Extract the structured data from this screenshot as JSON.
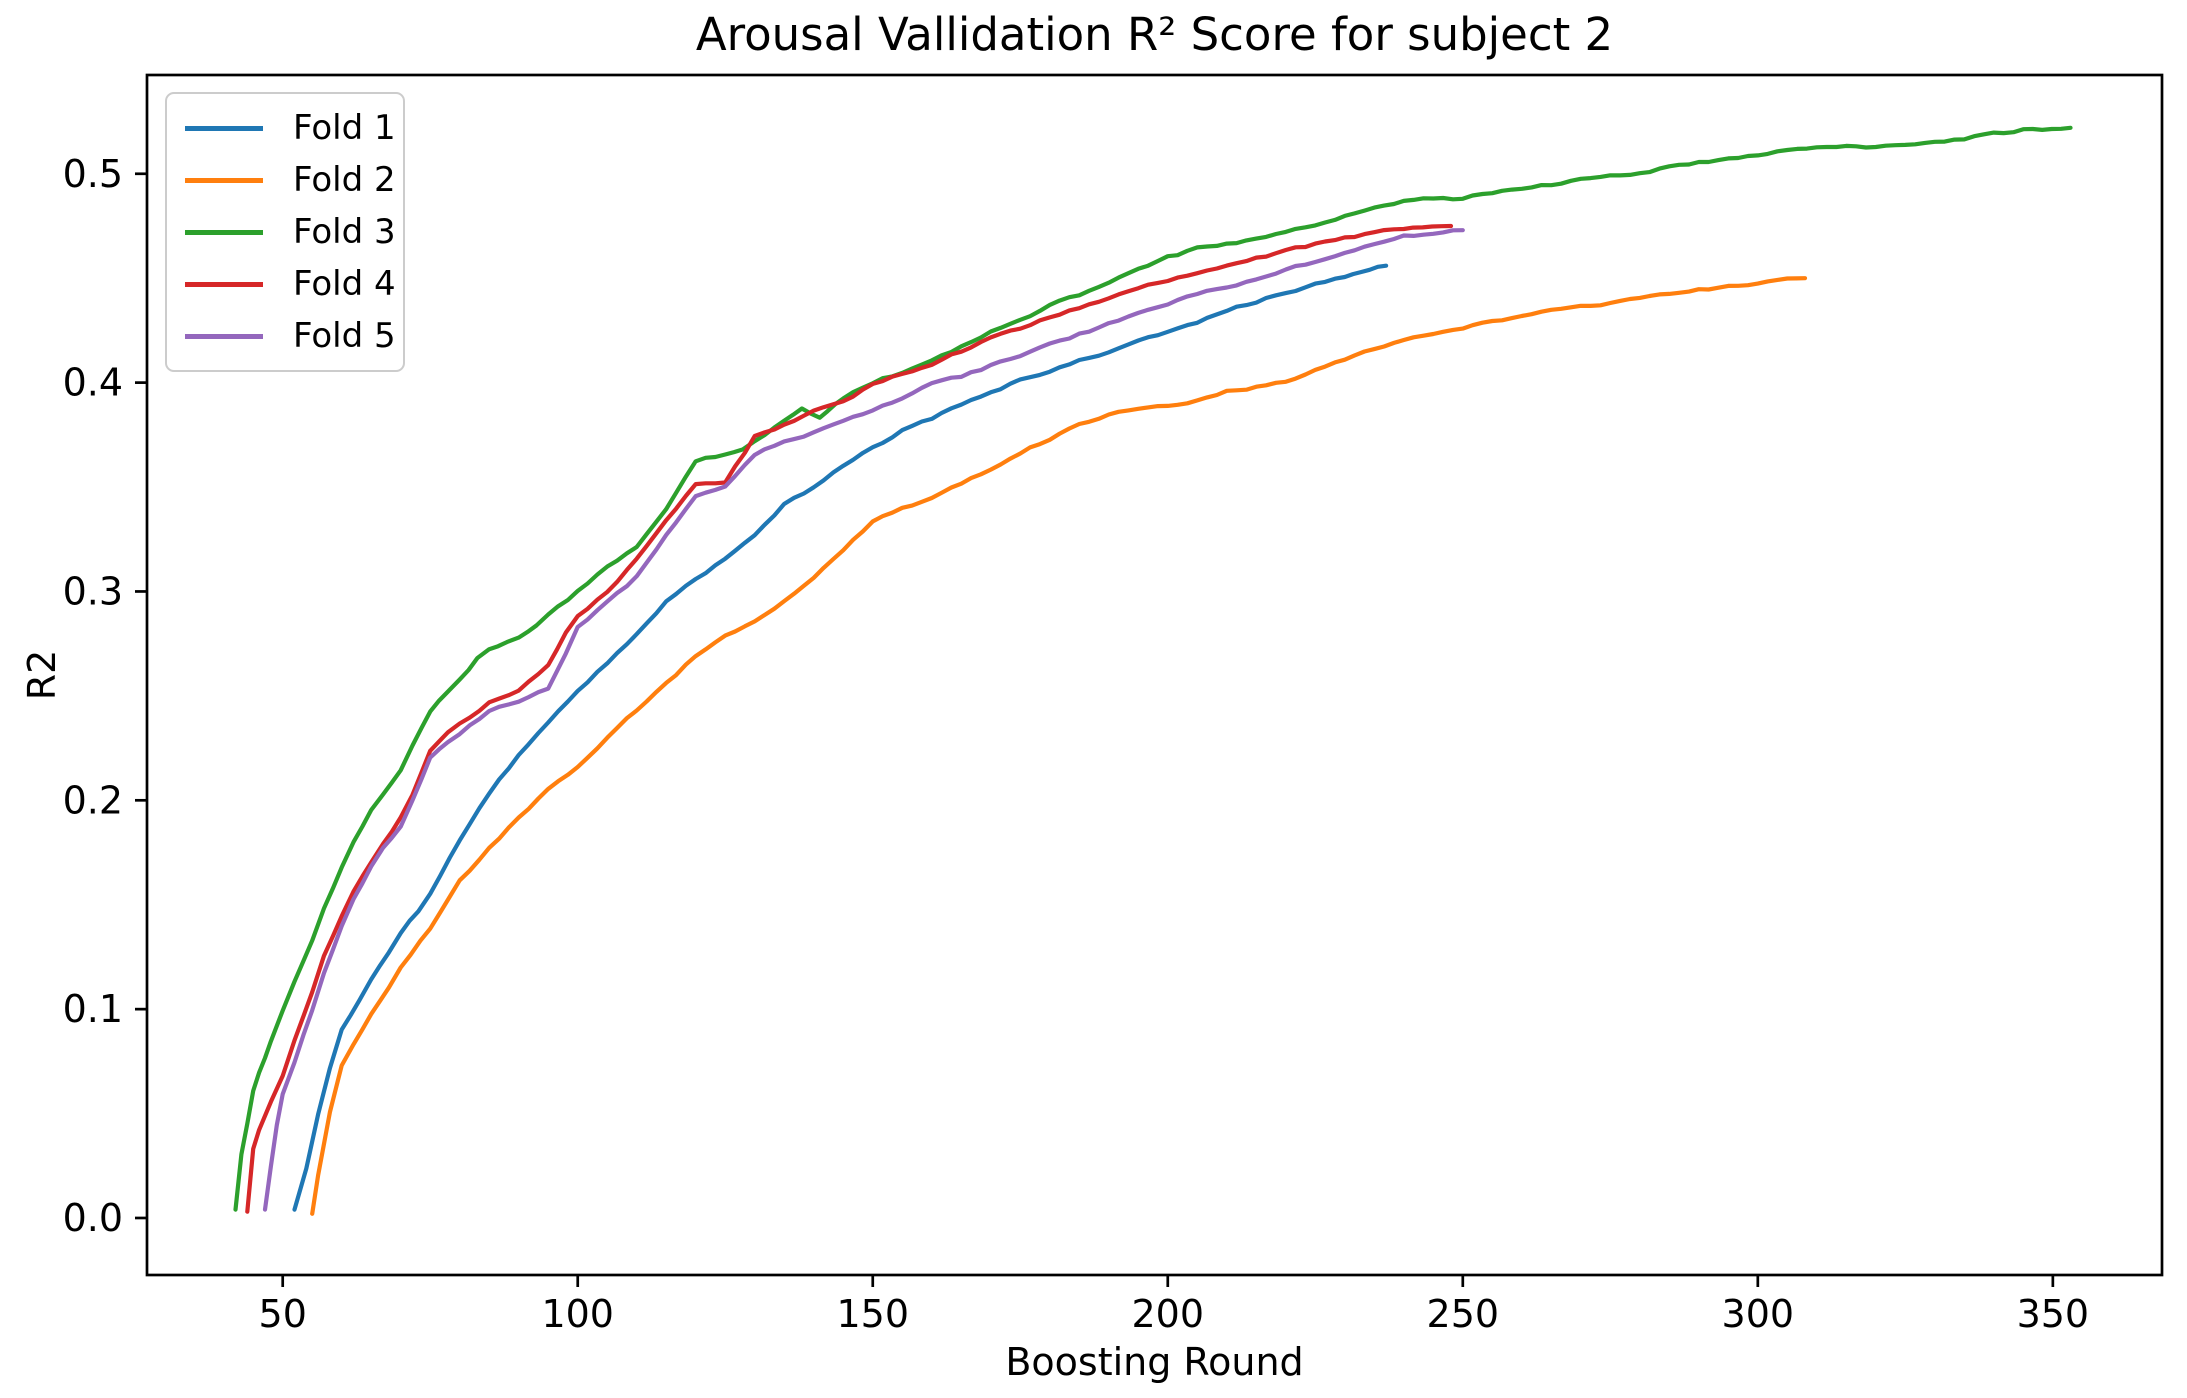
{
  "title": "Arousal Vallidation R² Score for subject 2",
  "chart_data": {
    "type": "line",
    "title": "Arousal Vallidation R² Score for subject 2",
    "xlabel": "Boosting Round",
    "ylabel": "R2",
    "xlim": [
      27,
      368.5
    ],
    "ylim": [
      -0.0273,
      0.5473
    ],
    "x_ticks": [
      50,
      100,
      150,
      200,
      250,
      300,
      350
    ],
    "y_ticks": [
      "0.0",
      "0.1",
      "0.2",
      "0.3",
      "0.4",
      "0.5"
    ],
    "grid": false,
    "legend_position": "upper left",
    "series": [
      {
        "name": "Fold 1",
        "color": "#1f77b4",
        "points": [
          [
            52,
            0.004
          ],
          [
            54,
            0.024
          ],
          [
            56,
            0.05
          ],
          [
            58,
            0.072
          ],
          [
            60,
            0.09
          ],
          [
            63,
            0.104
          ],
          [
            65,
            0.114
          ],
          [
            68,
            0.127
          ],
          [
            70,
            0.136
          ],
          [
            73,
            0.147
          ],
          [
            75,
            0.155
          ],
          [
            80,
            0.181
          ],
          [
            85,
            0.203
          ],
          [
            90,
            0.222
          ],
          [
            95,
            0.238
          ],
          [
            100,
            0.253
          ],
          [
            105,
            0.266
          ],
          [
            110,
            0.279
          ],
          [
            115,
            0.295
          ],
          [
            120,
            0.306
          ],
          [
            125,
            0.316
          ],
          [
            130,
            0.327
          ],
          [
            135,
            0.342
          ],
          [
            140,
            0.35
          ],
          [
            145,
            0.36
          ],
          [
            150,
            0.369
          ],
          [
            155,
            0.377
          ],
          [
            160,
            0.383
          ],
          [
            165,
            0.39
          ],
          [
            170,
            0.395
          ],
          [
            175,
            0.401
          ],
          [
            180,
            0.406
          ],
          [
            185,
            0.411
          ],
          [
            190,
            0.415
          ],
          [
            195,
            0.42
          ],
          [
            200,
            0.424
          ],
          [
            205,
            0.429
          ],
          [
            210,
            0.434
          ],
          [
            215,
            0.439
          ],
          [
            220,
            0.443
          ],
          [
            225,
            0.447
          ],
          [
            230,
            0.451
          ],
          [
            237,
            0.456
          ]
        ]
      },
      {
        "name": "Fold 2",
        "color": "#ff7f0e",
        "points": [
          [
            55,
            0.002
          ],
          [
            56,
            0.02
          ],
          [
            58,
            0.05
          ],
          [
            60,
            0.073
          ],
          [
            62,
            0.083
          ],
          [
            65,
            0.097
          ],
          [
            68,
            0.11
          ],
          [
            70,
            0.12
          ],
          [
            75,
            0.139
          ],
          [
            80,
            0.162
          ],
          [
            85,
            0.177
          ],
          [
            90,
            0.192
          ],
          [
            95,
            0.205
          ],
          [
            100,
            0.216
          ],
          [
            105,
            0.23
          ],
          [
            110,
            0.243
          ],
          [
            115,
            0.256
          ],
          [
            120,
            0.269
          ],
          [
            125,
            0.278
          ],
          [
            130,
            0.285
          ],
          [
            135,
            0.295
          ],
          [
            140,
            0.306
          ],
          [
            145,
            0.32
          ],
          [
            150,
            0.333
          ],
          [
            155,
            0.34
          ],
          [
            160,
            0.345
          ],
          [
            165,
            0.352
          ],
          [
            170,
            0.359
          ],
          [
            175,
            0.366
          ],
          [
            180,
            0.373
          ],
          [
            185,
            0.38
          ],
          [
            190,
            0.385
          ],
          [
            195,
            0.387
          ],
          [
            200,
            0.389
          ],
          [
            205,
            0.392
          ],
          [
            210,
            0.396
          ],
          [
            215,
            0.398
          ],
          [
            220,
            0.401
          ],
          [
            225,
            0.406
          ],
          [
            230,
            0.411
          ],
          [
            235,
            0.416
          ],
          [
            240,
            0.421
          ],
          [
            245,
            0.424
          ],
          [
            250,
            0.426
          ],
          [
            255,
            0.429
          ],
          [
            260,
            0.432
          ],
          [
            265,
            0.434
          ],
          [
            270,
            0.436
          ],
          [
            275,
            0.438
          ],
          [
            280,
            0.441
          ],
          [
            285,
            0.443
          ],
          [
            290,
            0.445
          ],
          [
            295,
            0.446
          ],
          [
            300,
            0.448
          ],
          [
            305,
            0.449
          ],
          [
            308,
            0.45
          ]
        ]
      },
      {
        "name": "Fold 3",
        "color": "#2ca02c",
        "points": [
          [
            42,
            0.004
          ],
          [
            43,
            0.03
          ],
          [
            44,
            0.045
          ],
          [
            45,
            0.061
          ],
          [
            46,
            0.07
          ],
          [
            47,
            0.077
          ],
          [
            48,
            0.085
          ],
          [
            50,
            0.099
          ],
          [
            52,
            0.113
          ],
          [
            55,
            0.133
          ],
          [
            57,
            0.148
          ],
          [
            60,
            0.168
          ],
          [
            62,
            0.18
          ],
          [
            65,
            0.195
          ],
          [
            67,
            0.203
          ],
          [
            70,
            0.215
          ],
          [
            72,
            0.227
          ],
          [
            75,
            0.242
          ],
          [
            78,
            0.252
          ],
          [
            80,
            0.258
          ],
          [
            83,
            0.268
          ],
          [
            85,
            0.272
          ],
          [
            88,
            0.275
          ],
          [
            90,
            0.277
          ],
          [
            93,
            0.284
          ],
          [
            95,
            0.289
          ],
          [
            100,
            0.3
          ],
          [
            105,
            0.312
          ],
          [
            110,
            0.322
          ],
          [
            115,
            0.34
          ],
          [
            120,
            0.362
          ],
          [
            125,
            0.366
          ],
          [
            128,
            0.368
          ],
          [
            130,
            0.372
          ],
          [
            135,
            0.382
          ],
          [
            138,
            0.387
          ],
          [
            141,
            0.383
          ],
          [
            145,
            0.392
          ],
          [
            150,
            0.4
          ],
          [
            155,
            0.405
          ],
          [
            160,
            0.41
          ],
          [
            165,
            0.417
          ],
          [
            170,
            0.424
          ],
          [
            175,
            0.43
          ],
          [
            180,
            0.437
          ],
          [
            185,
            0.442
          ],
          [
            190,
            0.448
          ],
          [
            195,
            0.454
          ],
          [
            200,
            0.46
          ],
          [
            205,
            0.464
          ],
          [
            210,
            0.466
          ],
          [
            215,
            0.469
          ],
          [
            220,
            0.472
          ],
          [
            225,
            0.475
          ],
          [
            230,
            0.48
          ],
          [
            235,
            0.484
          ],
          [
            240,
            0.487
          ],
          [
            245,
            0.488
          ],
          [
            250,
            0.488
          ],
          [
            255,
            0.491
          ],
          [
            260,
            0.493
          ],
          [
            265,
            0.495
          ],
          [
            270,
            0.497
          ],
          [
            275,
            0.499
          ],
          [
            280,
            0.5
          ],
          [
            285,
            0.503
          ],
          [
            290,
            0.505
          ],
          [
            295,
            0.507
          ],
          [
            300,
            0.509
          ],
          [
            305,
            0.511
          ],
          [
            310,
            0.512
          ],
          [
            315,
            0.513
          ],
          [
            320,
            0.513
          ],
          [
            325,
            0.514
          ],
          [
            330,
            0.515
          ],
          [
            335,
            0.517
          ],
          [
            340,
            0.519
          ],
          [
            345,
            0.521
          ],
          [
            353,
            0.522
          ]
        ]
      },
      {
        "name": "Fold 4",
        "color": "#d62728",
        "points": [
          [
            44,
            0.003
          ],
          [
            45,
            0.033
          ],
          [
            46,
            0.042
          ],
          [
            48,
            0.056
          ],
          [
            50,
            0.068
          ],
          [
            52,
            0.085
          ],
          [
            55,
            0.108
          ],
          [
            57,
            0.125
          ],
          [
            60,
            0.145
          ],
          [
            62,
            0.157
          ],
          [
            65,
            0.171
          ],
          [
            67,
            0.18
          ],
          [
            70,
            0.192
          ],
          [
            72,
            0.203
          ],
          [
            75,
            0.224
          ],
          [
            78,
            0.232
          ],
          [
            80,
            0.236
          ],
          [
            85,
            0.247
          ],
          [
            90,
            0.253
          ],
          [
            95,
            0.265
          ],
          [
            98,
            0.28
          ],
          [
            100,
            0.288
          ],
          [
            105,
            0.3
          ],
          [
            110,
            0.315
          ],
          [
            115,
            0.334
          ],
          [
            120,
            0.351
          ],
          [
            125,
            0.352
          ],
          [
            130,
            0.374
          ],
          [
            135,
            0.38
          ],
          [
            140,
            0.387
          ],
          [
            145,
            0.392
          ],
          [
            150,
            0.399
          ],
          [
            155,
            0.404
          ],
          [
            160,
            0.409
          ],
          [
            165,
            0.415
          ],
          [
            170,
            0.422
          ],
          [
            175,
            0.426
          ],
          [
            180,
            0.431
          ],
          [
            185,
            0.436
          ],
          [
            190,
            0.441
          ],
          [
            195,
            0.445
          ],
          [
            200,
            0.449
          ],
          [
            205,
            0.452
          ],
          [
            210,
            0.456
          ],
          [
            215,
            0.46
          ],
          [
            220,
            0.463
          ],
          [
            225,
            0.466
          ],
          [
            230,
            0.469
          ],
          [
            235,
            0.472
          ],
          [
            240,
            0.474
          ],
          [
            248,
            0.475
          ]
        ]
      },
      {
        "name": "Fold 5",
        "color": "#9467bd",
        "points": [
          [
            47,
            0.004
          ],
          [
            48,
            0.025
          ],
          [
            49,
            0.045
          ],
          [
            50,
            0.06
          ],
          [
            52,
            0.075
          ],
          [
            55,
            0.1
          ],
          [
            57,
            0.117
          ],
          [
            60,
            0.139
          ],
          [
            62,
            0.152
          ],
          [
            65,
            0.169
          ],
          [
            67,
            0.177
          ],
          [
            70,
            0.187
          ],
          [
            72,
            0.2
          ],
          [
            75,
            0.221
          ],
          [
            78,
            0.228
          ],
          [
            80,
            0.232
          ],
          [
            85,
            0.243
          ],
          [
            90,
            0.247
          ],
          [
            95,
            0.254
          ],
          [
            98,
            0.27
          ],
          [
            100,
            0.283
          ],
          [
            105,
            0.295
          ],
          [
            110,
            0.307
          ],
          [
            115,
            0.327
          ],
          [
            120,
            0.345
          ],
          [
            125,
            0.351
          ],
          [
            130,
            0.366
          ],
          [
            135,
            0.372
          ],
          [
            140,
            0.376
          ],
          [
            145,
            0.381
          ],
          [
            150,
            0.387
          ],
          [
            155,
            0.392
          ],
          [
            160,
            0.399
          ],
          [
            165,
            0.403
          ],
          [
            170,
            0.408
          ],
          [
            175,
            0.413
          ],
          [
            180,
            0.418
          ],
          [
            185,
            0.423
          ],
          [
            190,
            0.428
          ],
          [
            195,
            0.433
          ],
          [
            200,
            0.438
          ],
          [
            205,
            0.442
          ],
          [
            210,
            0.446
          ],
          [
            215,
            0.45
          ],
          [
            220,
            0.454
          ],
          [
            225,
            0.458
          ],
          [
            230,
            0.462
          ],
          [
            235,
            0.466
          ],
          [
            240,
            0.47
          ],
          [
            245,
            0.471
          ],
          [
            250,
            0.473
          ]
        ]
      }
    ]
  }
}
